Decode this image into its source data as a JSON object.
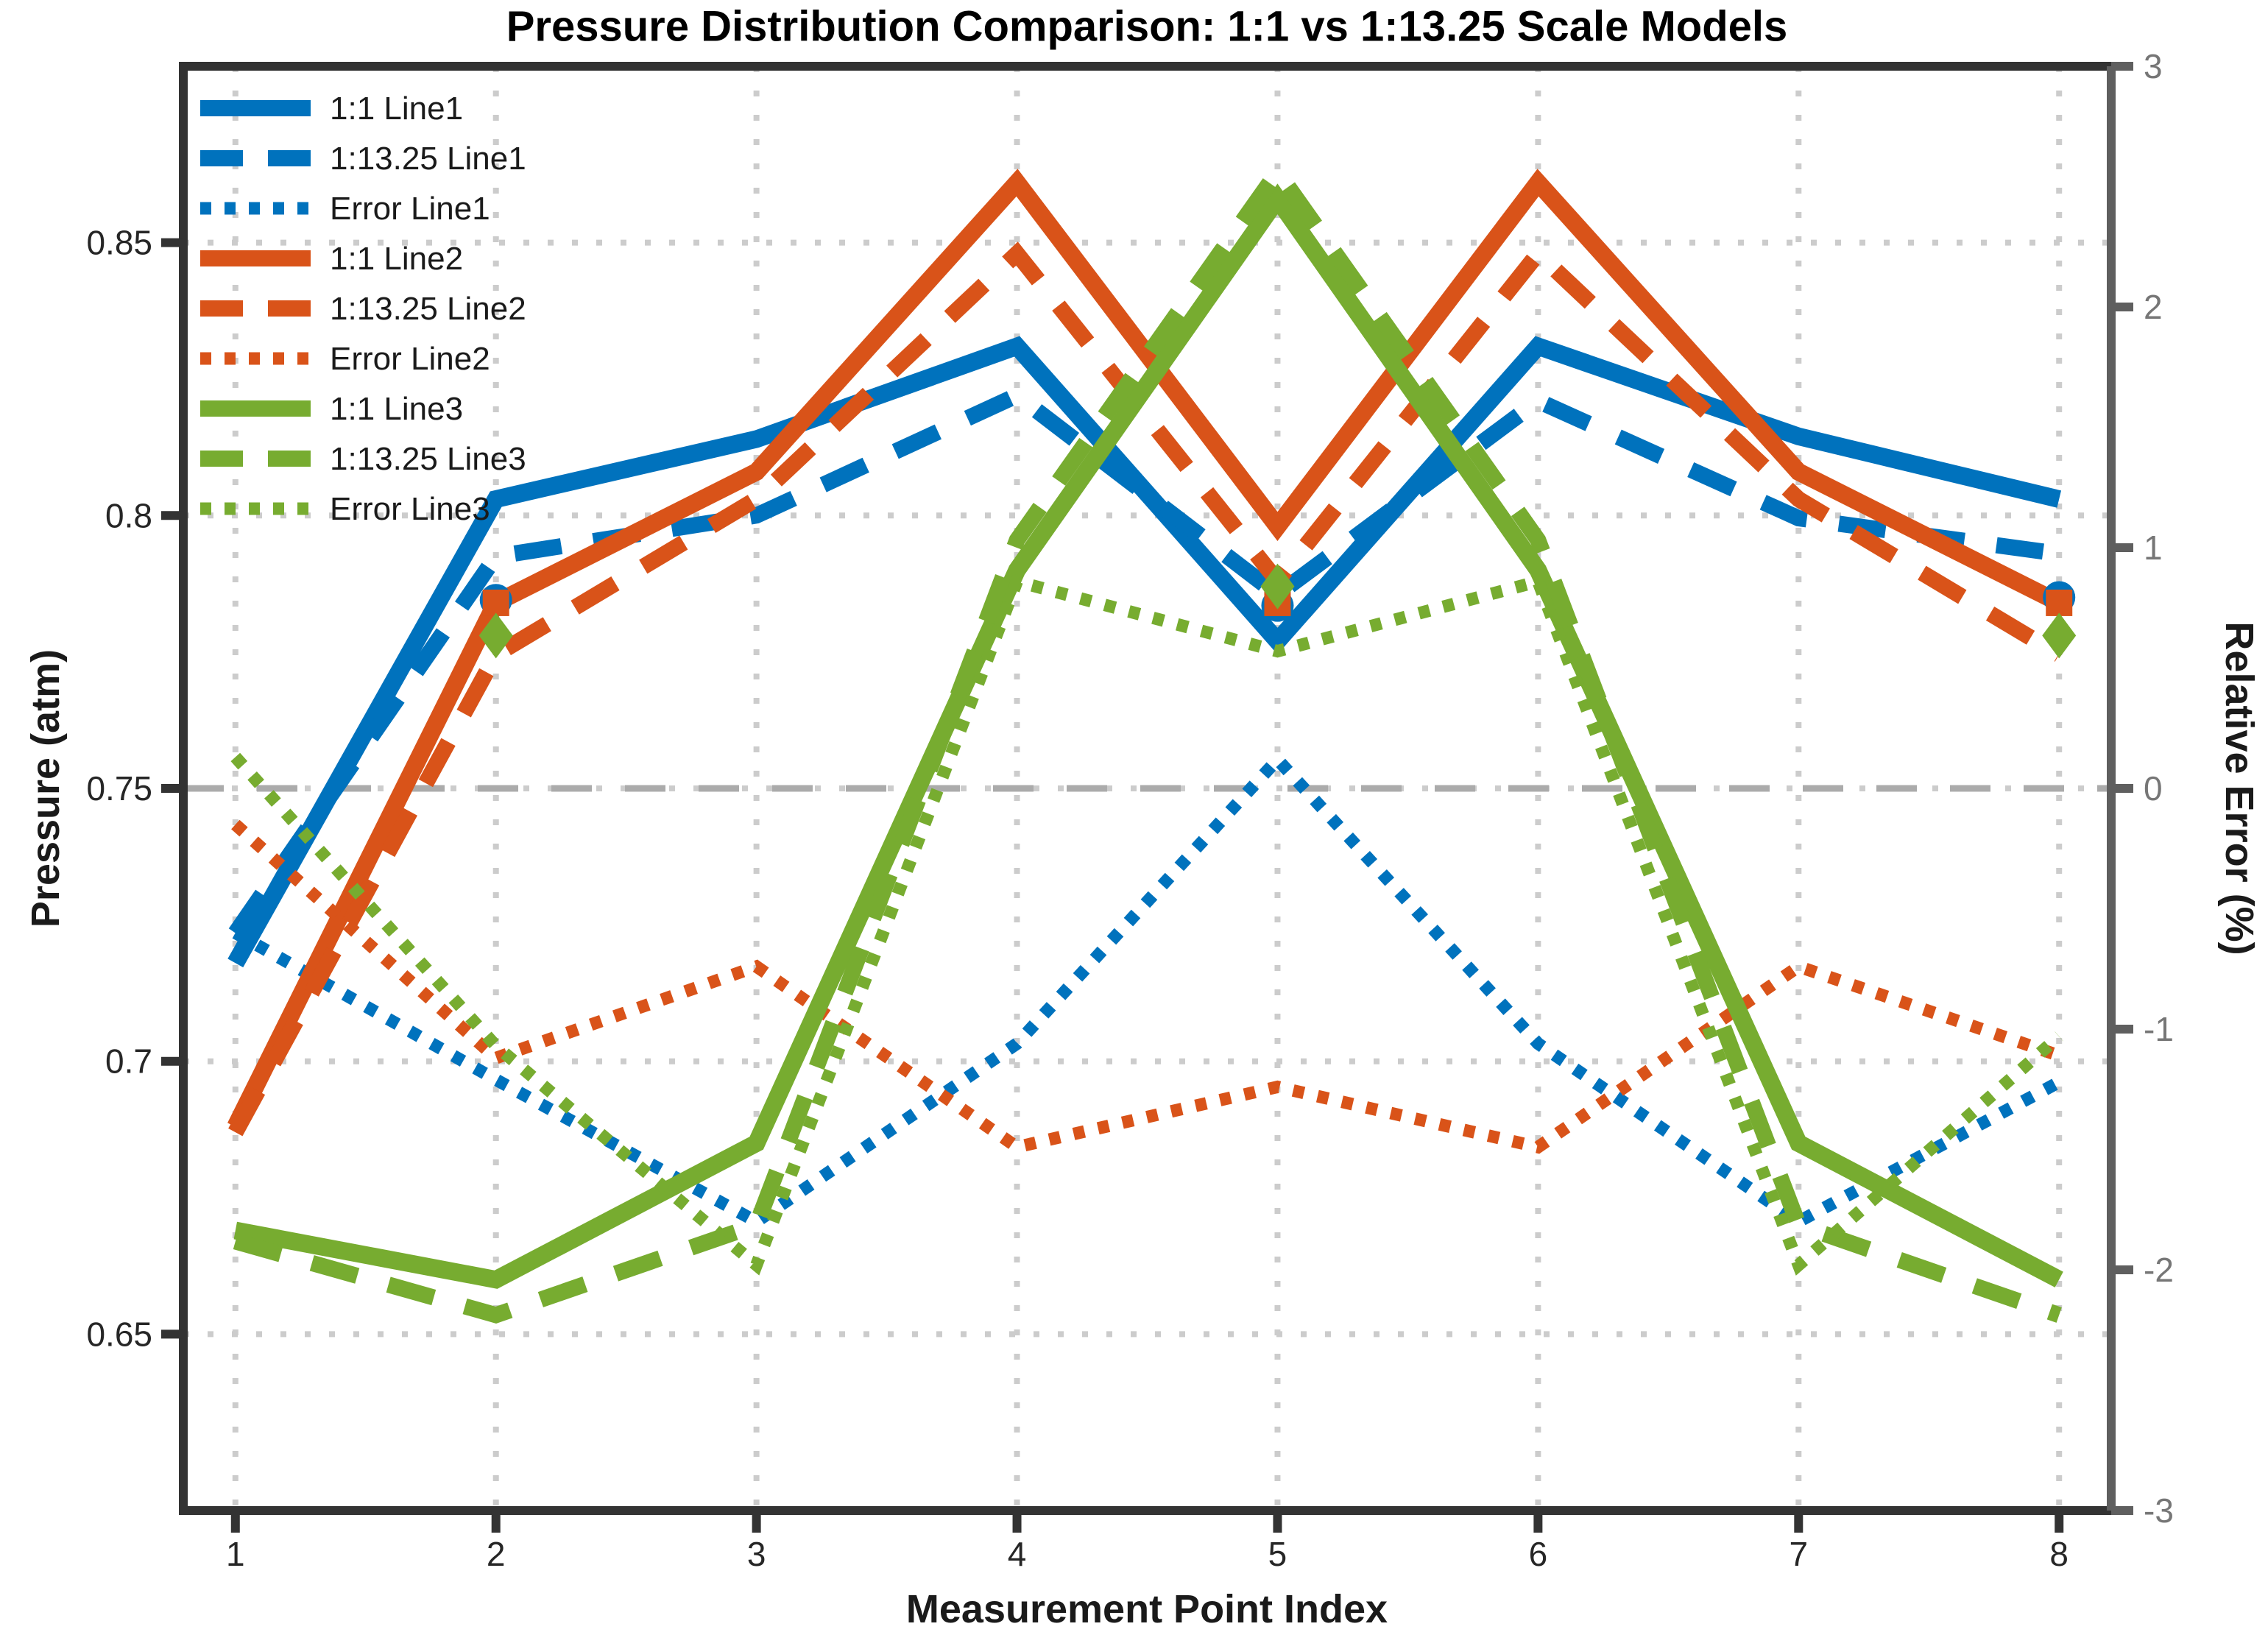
{
  "chart_data": {
    "type": "line",
    "title": "Pressure Distribution Comparison: 1:1 vs 1:13.25 Scale Models",
    "xlabel": "Measurement Point Index",
    "ylabel_left": "Pressure (atm)",
    "ylabel_right": "Relative Error (%)",
    "x": [
      1,
      2,
      3,
      4,
      5,
      6,
      7,
      8
    ],
    "x_ticks": [
      "1",
      "2",
      "3",
      "4",
      "5",
      "6",
      "7",
      "8"
    ],
    "xlim": [
      0.8,
      8.2
    ],
    "y_left_ticks": [
      "0.65",
      "0.7",
      "0.75",
      "0.8",
      "0.85"
    ],
    "y_left_tick_values": [
      0.65,
      0.7,
      0.75,
      0.8,
      0.85
    ],
    "y_left_lim": [
      0.617,
      0.882
    ],
    "y_right_ticks": [
      "3",
      "2",
      "1",
      "0",
      "-1",
      "-2",
      "-3"
    ],
    "y_right_tick_values": [
      3,
      2,
      1,
      0,
      -1,
      -2,
      -3
    ],
    "y_right_lim": [
      -3,
      3
    ],
    "grid": true,
    "zero_line_value": 0,
    "legend_position": "top-left",
    "series": [
      {
        "name": "1:1 Line1",
        "axis": "left",
        "style": "solid",
        "color": "#0072BD",
        "values": [
          0.718,
          0.803,
          0.814,
          0.831,
          0.777,
          0.831,
          0.8145,
          0.803
        ]
      },
      {
        "name": "1:13.25 Line1",
        "axis": "left",
        "style": "dashed",
        "color": "#0072BD",
        "values": [
          0.7235,
          0.7925,
          0.8,
          0.822,
          0.7855,
          0.821,
          0.7995,
          0.793
        ]
      },
      {
        "name": "Error Line1",
        "axis": "right",
        "style": "dotted",
        "color": "#0072BD",
        "values": [
          -0.6,
          -1.21,
          -1.8,
          -1.06,
          0.12,
          -1.06,
          -1.8,
          -1.22
        ]
      },
      {
        "name": "1:1 Line2",
        "axis": "left",
        "style": "solid",
        "color": "#D95319",
        "values": [
          0.688,
          0.784,
          0.808,
          0.861,
          0.798,
          0.861,
          0.808,
          0.784
        ]
      },
      {
        "name": "1:13.25 Line2",
        "axis": "left",
        "style": "dashed",
        "color": "#D95319",
        "values": [
          0.687,
          0.7745,
          0.803,
          0.848,
          0.788,
          0.848,
          0.803,
          0.7745
        ]
      },
      {
        "name": "Error Line2",
        "axis": "right",
        "style": "dotted",
        "color": "#D95319",
        "values": [
          -0.15,
          -1.12,
          -0.74,
          -1.49,
          -1.24,
          -1.49,
          -0.74,
          -1.11
        ]
      },
      {
        "name": "1:1 Line3",
        "axis": "left",
        "style": "solid",
        "color": "#77AC30",
        "values": [
          0.669,
          0.66,
          0.685,
          0.79,
          0.858,
          0.79,
          0.685,
          0.66
        ]
      },
      {
        "name": "1:13.25 Line3",
        "axis": "left",
        "style": "dashed",
        "color": "#77AC30",
        "values": [
          0.667,
          0.6535,
          0.67,
          0.7955,
          0.863,
          0.7955,
          0.67,
          0.6535
        ]
      },
      {
        "name": "Error Line3",
        "axis": "right",
        "style": "dotted",
        "color": "#77AC30",
        "values": [
          0.13,
          -1.07,
          -1.98,
          0.86,
          0.57,
          0.86,
          -1.98,
          -1.03
        ]
      }
    ],
    "markers": [
      {
        "shape": "circle",
        "color": "#0072BD",
        "x": [
          2,
          5,
          8
        ],
        "values": [
          0.7845,
          0.7835,
          0.785
        ]
      },
      {
        "shape": "square",
        "color": "#D95319",
        "x": [
          2,
          5,
          8
        ],
        "values": [
          0.784,
          0.784,
          0.784
        ]
      },
      {
        "shape": "diamond",
        "color": "#77AC30",
        "x": [
          2,
          5,
          8
        ],
        "values": [
          0.778,
          0.787,
          0.778
        ]
      }
    ]
  },
  "colors": {
    "line1": "#0072BD",
    "line2": "#D95319",
    "line3": "#77AC30",
    "grid": "#cccccc",
    "zero_line": "#ababab",
    "axis_left": "#333333",
    "axis_right": "#5f5f5f",
    "tick_label_left": "#262626",
    "tick_label_right": "#767676",
    "background": "#ffffff"
  }
}
